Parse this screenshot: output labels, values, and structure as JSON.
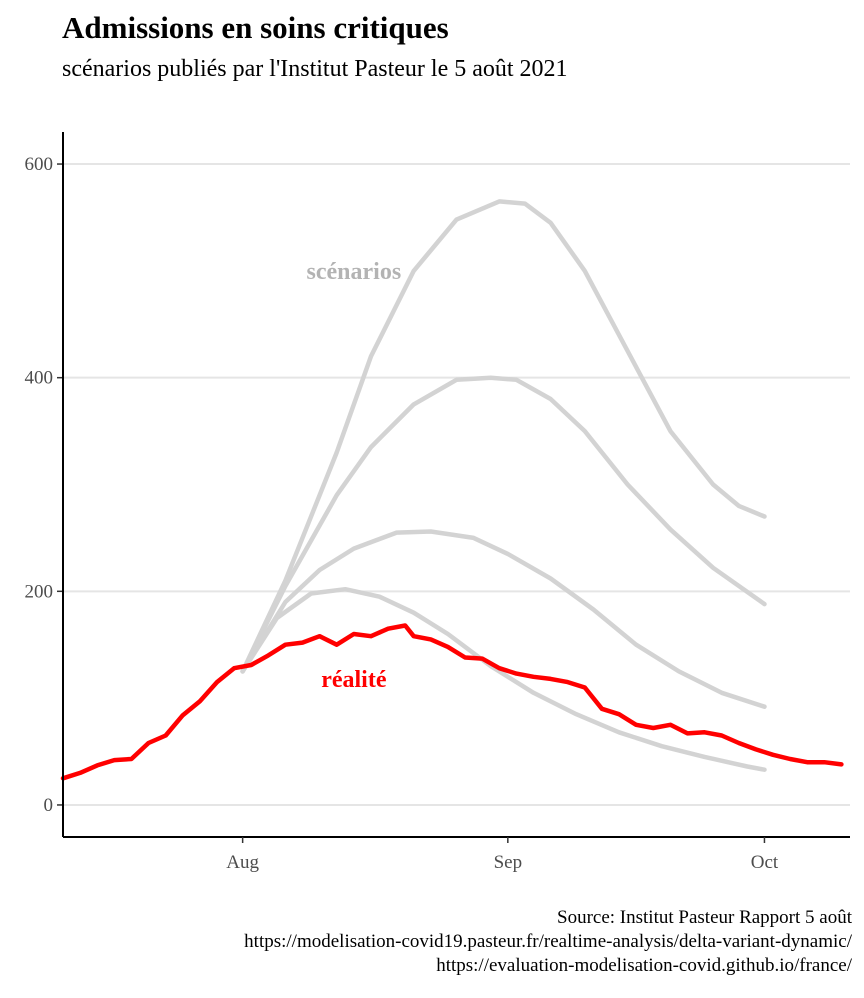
{
  "title": "Admissions en soins critiques",
  "subtitle": "scénarios publiés par l'Institut Pasteur le 5 août 2021",
  "caption": {
    "line1": "Source: Institut Pasteur Rapport 5 août",
    "line2": "https://modelisation-covid19.pasteur.fr/realtime-analysis/delta-variant-dynamic/",
    "line3": "https://evaluation-modelisation-covid.github.io/france/"
  },
  "colors": {
    "scenario": "#d3d3d3",
    "reality": "#ff0000",
    "grid": "#e5e5e5",
    "axis": "#000000"
  },
  "chart_data": {
    "type": "line",
    "title": "Admissions en soins critiques",
    "subtitle": "scénarios publiés par l'Institut Pasteur le 5 août 2021",
    "x_axis": {
      "type": "date",
      "range": [
        "2021-07-11",
        "2021-10-11"
      ],
      "ticks": [
        "2021-08-01",
        "2021-09-01",
        "2021-10-01"
      ],
      "tick_labels": [
        "Aug",
        "Sep",
        "Oct"
      ]
    },
    "y_axis": {
      "range": [
        -30,
        630
      ],
      "ticks": [
        0,
        200,
        400,
        600
      ],
      "tick_labels": [
        "0",
        "200",
        "400",
        "600"
      ]
    },
    "grid": "horizontal major lines",
    "annotations": [
      {
        "text": "scénarios",
        "x": "2021-08-14",
        "y": 500,
        "color": "#b3b3b3"
      },
      {
        "text": "réalité",
        "x": "2021-08-14",
        "y": 118,
        "color": "#ff0000"
      }
    ],
    "series": [
      {
        "group": "scénarios",
        "x": [
          "2021-08-01",
          "2021-08-06",
          "2021-08-12",
          "2021-08-16",
          "2021-08-21",
          "2021-08-26",
          "2021-08-31",
          "2021-09-03",
          "2021-09-06",
          "2021-09-10",
          "2021-09-15",
          "2021-09-20",
          "2021-09-25",
          "2021-09-28",
          "2021-10-01"
        ],
        "y": [
          125,
          210,
          330,
          420,
          500,
          548,
          565,
          563,
          545,
          500,
          425,
          350,
          300,
          280,
          270
        ]
      },
      {
        "group": "scénarios",
        "x": [
          "2021-08-01",
          "2021-08-06",
          "2021-08-12",
          "2021-08-16",
          "2021-08-21",
          "2021-08-26",
          "2021-08-30",
          "2021-09-02",
          "2021-09-06",
          "2021-09-10",
          "2021-09-15",
          "2021-09-20",
          "2021-09-25",
          "2021-10-01"
        ],
        "y": [
          125,
          205,
          290,
          335,
          375,
          398,
          400,
          398,
          380,
          350,
          300,
          258,
          222,
          188
        ]
      },
      {
        "group": "scénarios",
        "x": [
          "2021-08-01",
          "2021-08-06",
          "2021-08-10",
          "2021-08-14",
          "2021-08-19",
          "2021-08-23",
          "2021-08-28",
          "2021-09-01",
          "2021-09-06",
          "2021-09-11",
          "2021-09-16",
          "2021-09-21",
          "2021-09-26",
          "2021-10-01"
        ],
        "y": [
          125,
          190,
          220,
          240,
          255,
          256,
          250,
          235,
          212,
          183,
          150,
          125,
          105,
          92
        ]
      },
      {
        "group": "scénarios",
        "x": [
          "2021-08-01",
          "2021-08-05",
          "2021-08-09",
          "2021-08-13",
          "2021-08-17",
          "2021-08-21",
          "2021-08-25",
          "2021-08-30",
          "2021-09-04",
          "2021-09-09",
          "2021-09-14",
          "2021-09-19",
          "2021-09-24",
          "2021-09-29",
          "2021-10-01"
        ],
        "y": [
          125,
          175,
          198,
          202,
          195,
          180,
          160,
          130,
          105,
          85,
          68,
          55,
          45,
          36,
          33
        ]
      },
      {
        "name": "réalité",
        "x": [
          "2021-07-11",
          "2021-07-13",
          "2021-07-15",
          "2021-07-17",
          "2021-07-19",
          "2021-07-21",
          "2021-07-23",
          "2021-07-25",
          "2021-07-27",
          "2021-07-29",
          "2021-07-31",
          "2021-08-02",
          "2021-08-04",
          "2021-08-06",
          "2021-08-08",
          "2021-08-10",
          "2021-08-12",
          "2021-08-14",
          "2021-08-16",
          "2021-08-18",
          "2021-08-20",
          "2021-08-21",
          "2021-08-23",
          "2021-08-25",
          "2021-08-27",
          "2021-08-29",
          "2021-08-31",
          "2021-09-02",
          "2021-09-04",
          "2021-09-06",
          "2021-09-08",
          "2021-09-10",
          "2021-09-12",
          "2021-09-14",
          "2021-09-16",
          "2021-09-18",
          "2021-09-20",
          "2021-09-22",
          "2021-09-24",
          "2021-09-26",
          "2021-09-28",
          "2021-09-30",
          "2021-10-02",
          "2021-10-04",
          "2021-10-06",
          "2021-10-08",
          "2021-10-10"
        ],
        "y": [
          25,
          30,
          37,
          42,
          43,
          58,
          65,
          84,
          97,
          115,
          128,
          131,
          140,
          150,
          152,
          158,
          150,
          160,
          158,
          165,
          168,
          158,
          155,
          148,
          138,
          137,
          128,
          123,
          120,
          118,
          115,
          110,
          90,
          85,
          75,
          72,
          75,
          67,
          68,
          65,
          58,
          52,
          47,
          43,
          40,
          40,
          38
        ]
      }
    ]
  }
}
